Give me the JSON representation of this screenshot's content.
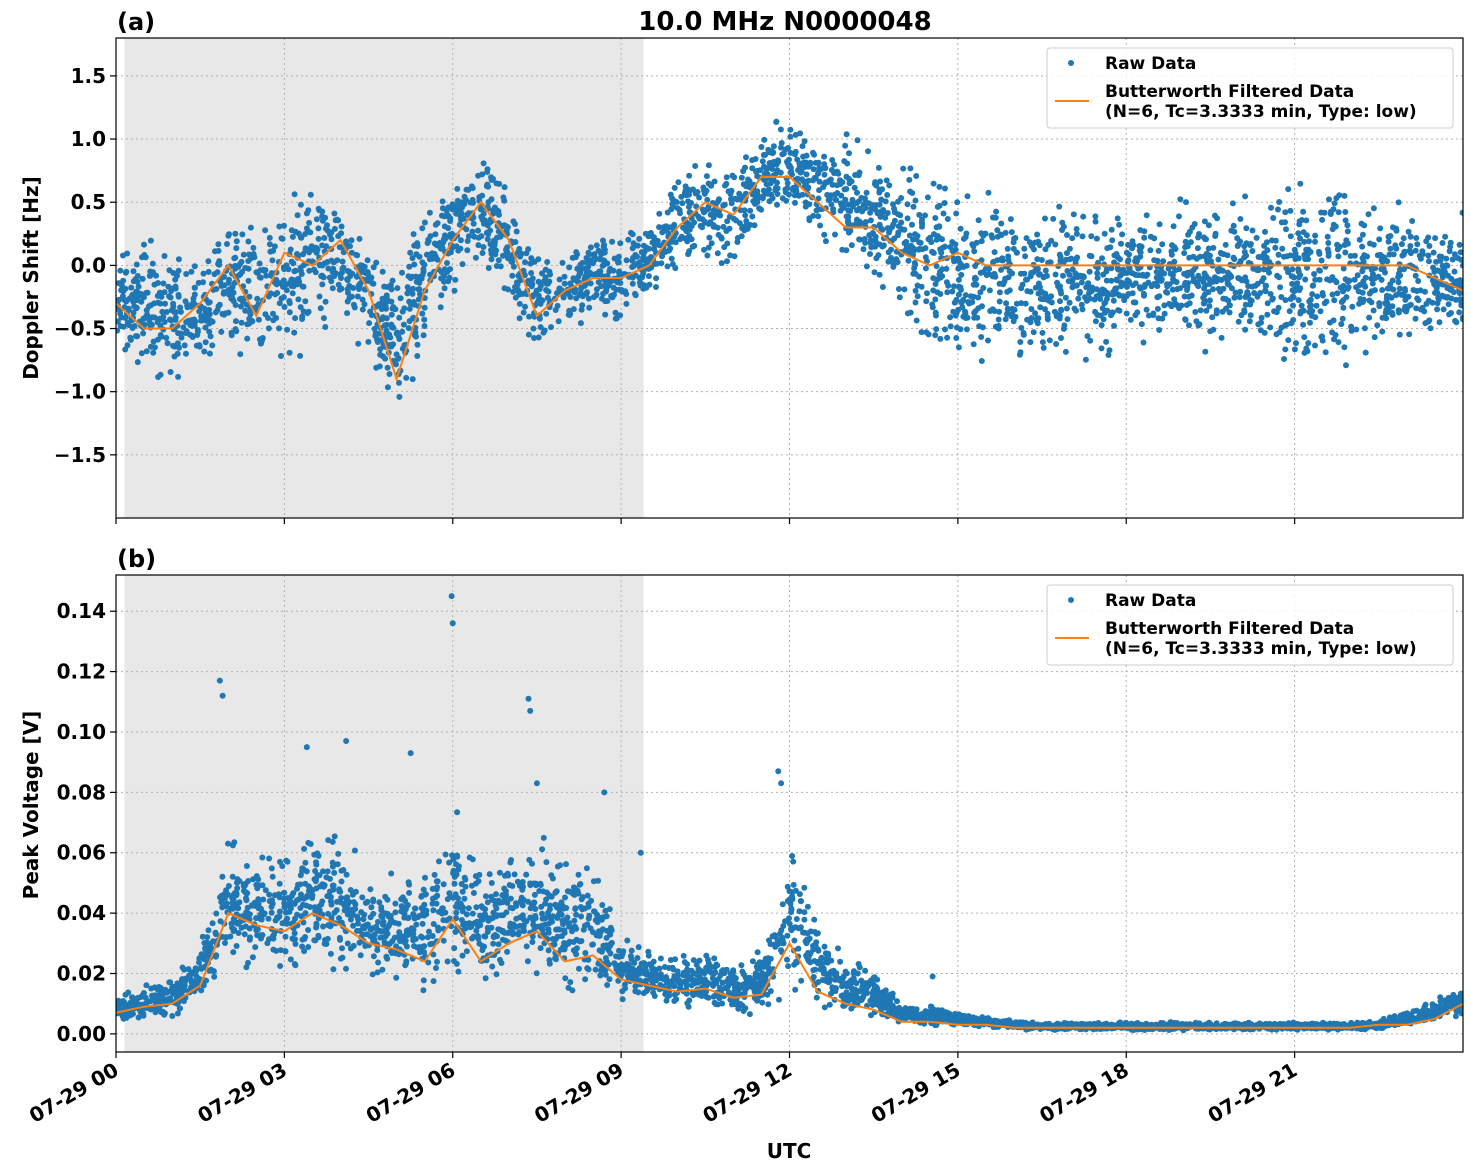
{
  "figure": {
    "title": "10.0 MHz N0000048",
    "xlabel": "UTC",
    "x_tick_labels": [
      "07-29 00",
      "07-29 03",
      "07-29 06",
      "07-29 09",
      "07-29 12",
      "07-29 15",
      "07-29 18",
      "07-29 21"
    ],
    "colors": {
      "raw": "#1f77b4",
      "filtered": "#ff7f0e",
      "night_shade": "#e8e8e8",
      "grid": "#b0b0b0"
    }
  },
  "legend": {
    "raw_label": "Raw Data",
    "filtered_label_line1": "Butterworth Filtered Data",
    "filtered_label_line2": "(N=6, Tc=3.3333 min, Type: low)"
  },
  "chart_data": [
    {
      "type": "scatter",
      "panel_label": "(a)",
      "ylabel": "Doppler Shift [Hz]",
      "x_unit": "hours UTC on 07-29",
      "xlim": [
        0,
        24
      ],
      "ylim": [
        -2.0,
        1.8
      ],
      "y_ticks": [
        -1.5,
        -1.0,
        -0.5,
        0.0,
        0.5,
        1.0,
        1.5
      ],
      "y_tick_labels": [
        "−1.5",
        "−1.0",
        "−0.5",
        "0.0",
        "0.5",
        "1.0",
        "1.5"
      ],
      "shaded_x_range": [
        0.15,
        9.4
      ],
      "grid": true,
      "legend_position": "upper right",
      "series": [
        {
          "name": "Raw Data",
          "style": "points",
          "envelope": {
            "x": [
              0,
              0.5,
              1,
              1.5,
              2,
              2.5,
              3,
              3.5,
              4,
              4.5,
              5,
              5.5,
              6,
              6.5,
              7,
              7.5,
              8,
              8.5,
              9,
              9.5,
              10,
              10.5,
              11,
              11.5,
              12,
              12.5,
              13,
              13.5,
              14,
              14.5,
              15,
              15.5,
              16,
              16.5,
              17,
              17.5,
              18,
              18.5,
              19,
              19.5,
              20,
              20.5,
              21,
              21.5,
              22,
              22.5,
              23,
              23.5,
              24
            ],
            "lower": [
              -0.8,
              -0.9,
              -1.1,
              -0.9,
              -0.8,
              -1.0,
              -1.1,
              -0.6,
              -0.5,
              -0.8,
              -1.3,
              -0.8,
              -0.3,
              -0.1,
              -0.5,
              -0.8,
              -0.6,
              -0.4,
              -0.5,
              -0.3,
              -0.1,
              0.0,
              -0.1,
              0.3,
              0.3,
              0.2,
              0.0,
              -0.3,
              -0.6,
              -0.8,
              -1.0,
              -1.0,
              -0.9,
              -0.9,
              -0.8,
              -0.9,
              -0.8,
              -0.8,
              -0.8,
              -0.8,
              -0.7,
              -0.9,
              -1.0,
              -1.0,
              -0.9,
              -0.9,
              -0.8,
              -0.7,
              -0.7
            ],
            "upper": [
              0.2,
              0.3,
              0.3,
              0.2,
              0.5,
              0.6,
              0.7,
              0.7,
              0.6,
              0.4,
              0.1,
              0.6,
              0.8,
              1.0,
              0.7,
              0.2,
              0.2,
              0.3,
              0.3,
              0.4,
              0.8,
              0.9,
              0.9,
              1.1,
              1.3,
              1.1,
              1.1,
              1.1,
              0.9,
              0.9,
              0.8,
              0.8,
              0.7,
              0.6,
              0.6,
              0.5,
              0.6,
              0.6,
              0.6,
              0.6,
              0.6,
              0.7,
              0.8,
              0.8,
              0.7,
              0.7,
              0.6,
              0.6,
              0.5
            ]
          }
        },
        {
          "name": "Butterworth Filtered Data\n(N=6, Tc=3.3333 min, Type: low)",
          "style": "line",
          "x": [
            0,
            0.5,
            1,
            1.5,
            2,
            2.5,
            3,
            3.5,
            4,
            4.5,
            5,
            5.5,
            6,
            6.5,
            7,
            7.5,
            8,
            8.5,
            9,
            9.5,
            10,
            10.5,
            11,
            11.5,
            12,
            12.5,
            13,
            13.5,
            14,
            14.5,
            15,
            15.5,
            16,
            16.5,
            17,
            17.5,
            18,
            18.5,
            19,
            19.5,
            20,
            20.5,
            21,
            21.5,
            22,
            22.5,
            23,
            23.5,
            24
          ],
          "y": [
            -0.3,
            -0.5,
            -0.5,
            -0.3,
            0.0,
            -0.4,
            0.1,
            0.0,
            0.2,
            -0.2,
            -0.9,
            -0.2,
            0.2,
            0.5,
            0.2,
            -0.4,
            -0.2,
            -0.1,
            -0.1,
            0.0,
            0.3,
            0.5,
            0.4,
            0.7,
            0.7,
            0.5,
            0.3,
            0.3,
            0.1,
            0.0,
            0.1,
            0.0,
            0.0,
            0.0,
            0.0,
            0.0,
            0.0,
            0.0,
            0.0,
            0.0,
            0.0,
            0.0,
            0.0,
            0.0,
            0.0,
            0.0,
            0.0,
            -0.1,
            -0.2
          ]
        }
      ]
    },
    {
      "type": "scatter",
      "panel_label": "(b)",
      "ylabel": "Peak Voltage [V]",
      "x_unit": "hours UTC on 07-29",
      "xlim": [
        0,
        24
      ],
      "ylim": [
        -0.006,
        0.152
      ],
      "y_ticks": [
        0.0,
        0.02,
        0.04,
        0.06,
        0.08,
        0.1,
        0.12,
        0.14
      ],
      "y_tick_labels": [
        "0.00",
        "0.02",
        "0.04",
        "0.06",
        "0.08",
        "0.10",
        "0.12",
        "0.14"
      ],
      "shaded_x_range": [
        0.15,
        9.4
      ],
      "grid": true,
      "legend_position": "upper right",
      "series": [
        {
          "name": "Raw Data",
          "style": "points",
          "envelope": {
            "x": [
              0,
              0.5,
              1,
              1.5,
              2,
              2.5,
              3,
              3.5,
              4,
              4.5,
              5,
              5.5,
              6,
              6.5,
              7,
              7.5,
              8,
              8.5,
              9,
              9.5,
              10,
              10.5,
              11,
              11.5,
              12,
              12.5,
              13,
              13.5,
              14,
              14.5,
              15,
              15.5,
              16,
              16.5,
              17,
              17.5,
              18,
              18.5,
              19,
              19.5,
              20,
              20.5,
              21,
              21.5,
              22,
              22.5,
              23,
              23.5,
              24
            ],
            "lower": [
              0.003,
              0.003,
              0.004,
              0.008,
              0.018,
              0.018,
              0.012,
              0.016,
              0.016,
              0.016,
              0.012,
              0.01,
              0.015,
              0.01,
              0.01,
              0.012,
              0.01,
              0.01,
              0.006,
              0.008,
              0.006,
              0.006,
              0.006,
              0.006,
              0.01,
              0.006,
              0.004,
              0.004,
              0.003,
              0.002,
              0.002,
              0.002,
              0.001,
              0.001,
              0.001,
              0.001,
              0.001,
              0.001,
              0.001,
              0.001,
              0.001,
              0.001,
              0.001,
              0.001,
              0.001,
              0.001,
              0.002,
              0.003,
              0.005
            ],
            "upper": [
              0.013,
              0.018,
              0.02,
              0.03,
              0.07,
              0.062,
              0.068,
              0.075,
              0.07,
              0.055,
              0.058,
              0.06,
              0.08,
              0.06,
              0.068,
              0.07,
              0.062,
              0.06,
              0.04,
              0.028,
              0.03,
              0.028,
              0.024,
              0.03,
              0.07,
              0.04,
              0.028,
              0.024,
              0.01,
              0.01,
              0.008,
              0.006,
              0.005,
              0.004,
              0.004,
              0.004,
              0.004,
              0.004,
              0.004,
              0.004,
              0.004,
              0.004,
              0.004,
              0.004,
              0.004,
              0.005,
              0.008,
              0.012,
              0.018
            ]
          },
          "peaks": {
            "x": [
              1.85,
              1.9,
              3.4,
              4.1,
              5.25,
              5.98,
              6.0,
              7.35,
              7.38,
              7.5,
              8.7,
              9.35,
              11.8,
              11.85,
              14.55
            ],
            "y": [
              0.117,
              0.112,
              0.095,
              0.097,
              0.093,
              0.145,
              0.136,
              0.111,
              0.107,
              0.083,
              0.08,
              0.06,
              0.087,
              0.083,
              0.019
            ]
          }
        },
        {
          "name": "Butterworth Filtered Data\n(N=6, Tc=3.3333 min, Type: low)",
          "style": "line",
          "x": [
            0,
            0.5,
            1,
            1.5,
            2,
            2.5,
            3,
            3.5,
            4,
            4.5,
            5,
            5.5,
            6,
            6.5,
            7,
            7.5,
            8,
            8.5,
            9,
            9.5,
            10,
            10.5,
            11,
            11.5,
            12,
            12.5,
            13,
            13.5,
            14,
            14.5,
            15,
            15.5,
            16,
            16.5,
            17,
            17.5,
            18,
            18.5,
            19,
            19.5,
            20,
            20.5,
            21,
            21.5,
            22,
            22.5,
            23,
            23.5,
            24
          ],
          "y": [
            0.007,
            0.009,
            0.01,
            0.016,
            0.04,
            0.036,
            0.034,
            0.04,
            0.036,
            0.03,
            0.028,
            0.024,
            0.038,
            0.024,
            0.03,
            0.034,
            0.024,
            0.026,
            0.018,
            0.016,
            0.014,
            0.015,
            0.012,
            0.013,
            0.03,
            0.014,
            0.01,
            0.008,
            0.004,
            0.004,
            0.003,
            0.003,
            0.002,
            0.002,
            0.002,
            0.002,
            0.002,
            0.002,
            0.002,
            0.002,
            0.002,
            0.002,
            0.002,
            0.002,
            0.002,
            0.003,
            0.003,
            0.005,
            0.01
          ]
        }
      ]
    }
  ]
}
